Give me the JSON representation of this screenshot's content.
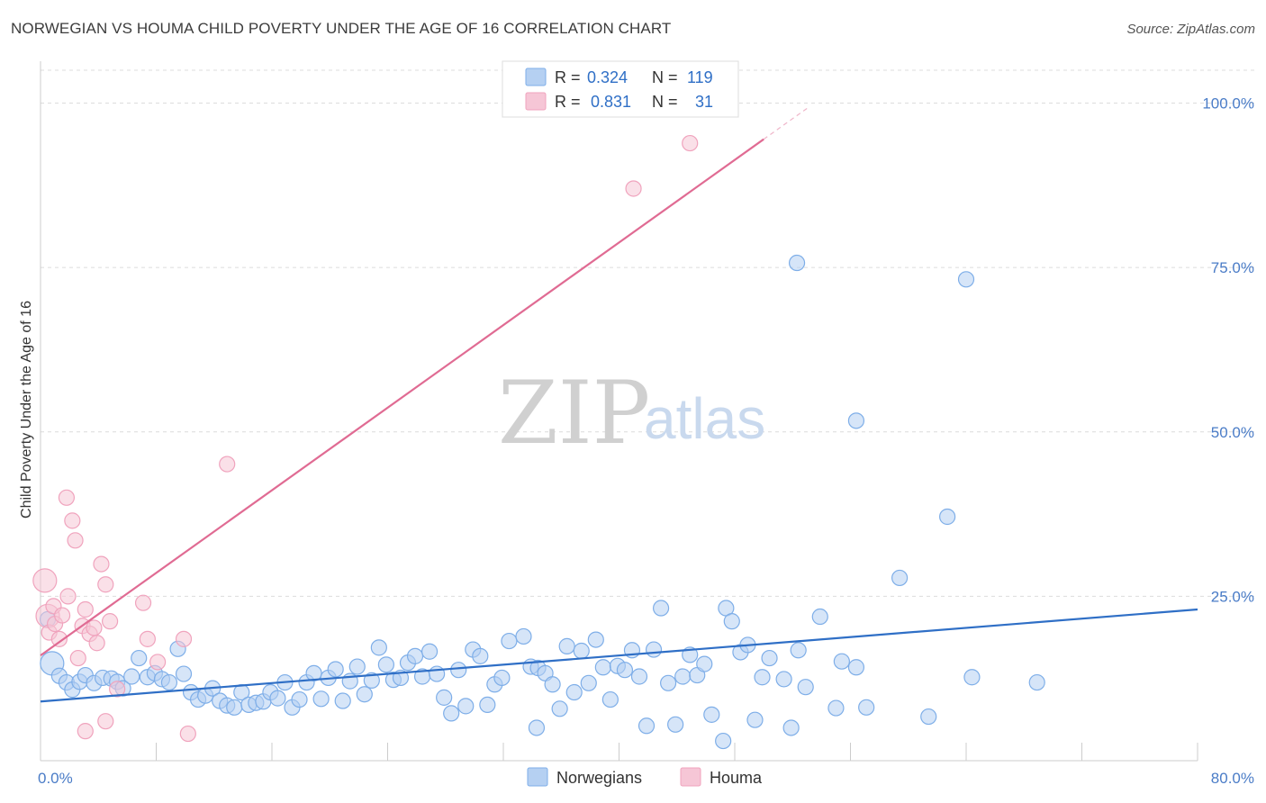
{
  "title": "NORWEGIAN VS HOUMA CHILD POVERTY UNDER THE AGE OF 16 CORRELATION CHART",
  "source": "Source: ZipAtlas.com",
  "watermark": {
    "zip": "ZIP",
    "atlas": "atlas"
  },
  "chart_data": {
    "type": "scatter",
    "ylabel": "Child Poverty Under the Age of 16",
    "xlim": [
      0,
      80
    ],
    "ylim": [
      0,
      105
    ],
    "x_tick_labels": [
      {
        "value": 0,
        "label": "0.0%"
      },
      {
        "value": 80,
        "label": "80.0%"
      }
    ],
    "y_tick_labels": [
      {
        "value": 25,
        "label": "25.0%"
      },
      {
        "value": 50,
        "label": "50.0%"
      },
      {
        "value": 75,
        "label": "75.0%"
      },
      {
        "value": 100,
        "label": "100.0%"
      }
    ],
    "grid": true,
    "legend_top": [
      {
        "series": "Norwegians",
        "r_label": "R =",
        "r": "0.324",
        "n_label": "N =",
        "n": "119"
      },
      {
        "series": "Houma",
        "r_label": "R =",
        "r": "0.831",
        "n_label": "N =",
        "n": "31"
      }
    ],
    "series": [
      {
        "name": "Norwegians",
        "color": "#7eaee8",
        "fill": "#b5d0f2",
        "trend": {
          "x0": 0,
          "y0": 9.0,
          "x1": 80,
          "y1": 23.0,
          "color": "#2f6fc6"
        },
        "points": [
          [
            0.8,
            14.8
          ],
          [
            0.5,
            21.5
          ],
          [
            1.3,
            12.9
          ],
          [
            1.8,
            11.9
          ],
          [
            2.2,
            10.8
          ],
          [
            2.7,
            12.0
          ],
          [
            3.1,
            13.0
          ],
          [
            3.7,
            11.8
          ],
          [
            4.3,
            12.6
          ],
          [
            4.9,
            12.5
          ],
          [
            5.3,
            12.0
          ],
          [
            5.7,
            11.0
          ],
          [
            6.3,
            12.8
          ],
          [
            6.8,
            15.6
          ],
          [
            7.4,
            12.7
          ],
          [
            7.9,
            13.3
          ],
          [
            8.4,
            12.4
          ],
          [
            8.9,
            11.9
          ],
          [
            9.5,
            17.0
          ],
          [
            9.9,
            13.2
          ],
          [
            10.4,
            10.4
          ],
          [
            10.9,
            9.3
          ],
          [
            11.4,
            9.9
          ],
          [
            11.9,
            11.0
          ],
          [
            12.4,
            9.1
          ],
          [
            12.9,
            8.4
          ],
          [
            13.4,
            8.1
          ],
          [
            13.9,
            10.4
          ],
          [
            14.4,
            8.5
          ],
          [
            14.9,
            8.8
          ],
          [
            15.4,
            9.0
          ],
          [
            15.9,
            10.4
          ],
          [
            16.4,
            9.5
          ],
          [
            16.9,
            11.9
          ],
          [
            17.4,
            8.1
          ],
          [
            17.9,
            9.3
          ],
          [
            18.4,
            11.9
          ],
          [
            18.9,
            13.3
          ],
          [
            19.4,
            9.4
          ],
          [
            19.9,
            12.6
          ],
          [
            20.4,
            13.9
          ],
          [
            20.9,
            9.1
          ],
          [
            21.4,
            12.1
          ],
          [
            21.9,
            14.3
          ],
          [
            22.4,
            10.1
          ],
          [
            22.9,
            12.2
          ],
          [
            23.4,
            17.2
          ],
          [
            23.9,
            14.6
          ],
          [
            24.4,
            12.3
          ],
          [
            24.9,
            12.6
          ],
          [
            25.4,
            14.9
          ],
          [
            25.9,
            15.9
          ],
          [
            26.4,
            12.8
          ],
          [
            26.9,
            16.6
          ],
          [
            27.4,
            13.2
          ],
          [
            27.9,
            9.6
          ],
          [
            28.4,
            7.2
          ],
          [
            28.9,
            13.8
          ],
          [
            29.4,
            8.3
          ],
          [
            29.9,
            16.9
          ],
          [
            30.4,
            15.9
          ],
          [
            30.9,
            8.5
          ],
          [
            31.4,
            11.6
          ],
          [
            31.9,
            12.6
          ],
          [
            32.4,
            18.2
          ],
          [
            33.4,
            18.9
          ],
          [
            33.9,
            14.3
          ],
          [
            34.4,
            14.1
          ],
          [
            34.9,
            13.3
          ],
          [
            35.4,
            11.6
          ],
          [
            35.9,
            7.9
          ],
          [
            36.4,
            17.4
          ],
          [
            36.9,
            10.4
          ],
          [
            37.4,
            16.7
          ],
          [
            37.9,
            11.8
          ],
          [
            38.4,
            18.4
          ],
          [
            38.9,
            14.2
          ],
          [
            39.4,
            9.3
          ],
          [
            39.9,
            14.4
          ],
          [
            40.4,
            13.8
          ],
          [
            40.9,
            16.8
          ],
          [
            41.4,
            12.8
          ],
          [
            41.9,
            5.3
          ],
          [
            42.4,
            16.9
          ],
          [
            42.9,
            23.2
          ],
          [
            43.4,
            11.8
          ],
          [
            43.9,
            5.5
          ],
          [
            44.4,
            12.8
          ],
          [
            44.9,
            16.1
          ],
          [
            45.4,
            13.0
          ],
          [
            45.9,
            14.7
          ],
          [
            46.4,
            7.0
          ],
          [
            47.4,
            23.2
          ],
          [
            47.8,
            21.2
          ],
          [
            48.4,
            16.5
          ],
          [
            48.9,
            17.6
          ],
          [
            49.4,
            6.2
          ],
          [
            49.9,
            12.7
          ],
          [
            50.4,
            15.6
          ],
          [
            51.4,
            12.4
          ],
          [
            51.9,
            5.0
          ],
          [
            52.4,
            16.8
          ],
          [
            52.9,
            11.2
          ],
          [
            53.9,
            21.9
          ],
          [
            55.4,
            15.1
          ],
          [
            56.4,
            14.2
          ],
          [
            59.4,
            27.8
          ],
          [
            61.4,
            6.7
          ],
          [
            64.4,
            12.7
          ],
          [
            68.9,
            11.9
          ],
          [
            47.2,
            3.0
          ],
          [
            55.0,
            8.0
          ],
          [
            52.3,
            75.7
          ],
          [
            56.4,
            51.7
          ],
          [
            64.0,
            73.2
          ],
          [
            62.7,
            37.1
          ],
          [
            57.1,
            8.1
          ],
          [
            34.3,
            5.0
          ]
        ]
      },
      {
        "name": "Houma",
        "color": "#f0a3bd",
        "fill": "#f6c6d6",
        "trend": {
          "x0": 0,
          "y0": 16.0,
          "x1": 50,
          "y1": 94.5,
          "color": "#e06b93",
          "dash_x1": 53.0,
          "dash_y1": 99.2
        },
        "points": [
          [
            0.3,
            27.4
          ],
          [
            0.5,
            22.0
          ],
          [
            0.6,
            19.5
          ],
          [
            0.9,
            23.5
          ],
          [
            1.0,
            20.8
          ],
          [
            1.3,
            18.5
          ],
          [
            1.5,
            22.1
          ],
          [
            1.8,
            40.0
          ],
          [
            1.9,
            25.0
          ],
          [
            2.2,
            36.5
          ],
          [
            2.4,
            33.5
          ],
          [
            2.6,
            15.6
          ],
          [
            2.9,
            20.5
          ],
          [
            3.1,
            23.0
          ],
          [
            3.4,
            19.3
          ],
          [
            3.7,
            20.2
          ],
          [
            3.9,
            17.9
          ],
          [
            4.2,
            29.9
          ],
          [
            4.5,
            26.8
          ],
          [
            4.8,
            21.2
          ],
          [
            5.3,
            10.9
          ],
          [
            7.1,
            24.0
          ],
          [
            7.4,
            18.5
          ],
          [
            8.1,
            15.0
          ],
          [
            9.9,
            18.5
          ],
          [
            10.2,
            4.1
          ],
          [
            12.9,
            45.1
          ],
          [
            4.5,
            6.0
          ],
          [
            3.1,
            4.5
          ],
          [
            41.0,
            87.0
          ],
          [
            44.9,
            93.9
          ]
        ]
      }
    ]
  },
  "bottom_legend": [
    {
      "label": "Norwegians"
    },
    {
      "label": "Houma"
    }
  ]
}
